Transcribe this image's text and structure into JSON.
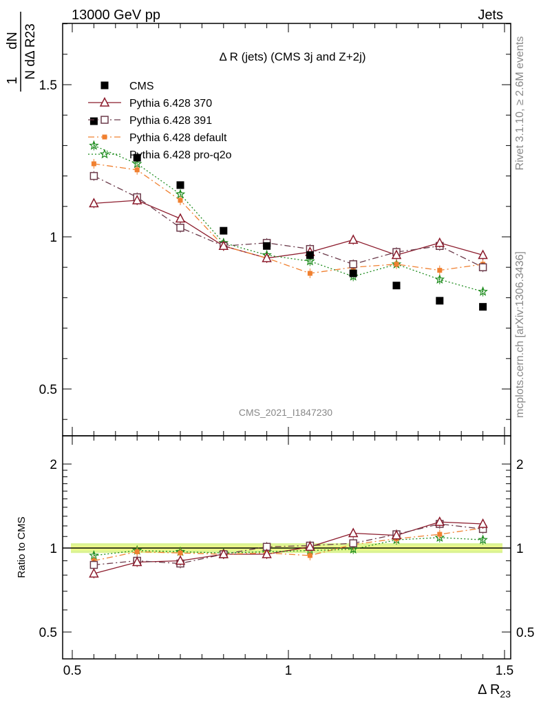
{
  "header": {
    "left": "13000 GeV pp",
    "right": "Jets"
  },
  "side_labels": {
    "rivet": "Rivet 3.1.10, ≥ 2.6M events",
    "mcplots": "mcplots.cern.ch [arXiv:1306.3436]"
  },
  "chart_data": [
    {
      "type": "line",
      "title": "Δ R (jets) (CMS 3j and Z+2j)",
      "watermark": "CMS_2021_I1847230",
      "ylabel_top": "1",
      "ylabel_frac": "dN",
      "ylabel_denom": "N dΔ R23",
      "xlim": [
        0.5,
        1.5
      ],
      "ylim": [
        0.2,
        2.95
      ],
      "yticks": [
        "0.5",
        "1",
        "1.5",
        "2",
        "2.5"
      ],
      "legend_position": "top-left",
      "x": [
        0.55,
        0.65,
        0.75,
        0.85,
        0.95,
        1.05,
        1.15,
        1.25,
        1.35,
        1.45
      ],
      "series": [
        {
          "name": "CMS",
          "color": "#000000",
          "marker": "square-filled",
          "line": "none",
          "values": [
            1.38,
            1.26,
            1.17,
            1.02,
            0.97,
            0.94,
            0.88,
            0.84,
            0.79,
            0.77
          ]
        },
        {
          "name": "Pythia 6.428 370",
          "color": "#8b1a2b",
          "marker": "triangle-open",
          "line": "solid",
          "values": [
            1.11,
            1.12,
            1.06,
            0.97,
            0.93,
            0.95,
            0.99,
            0.94,
            0.98,
            0.94
          ]
        },
        {
          "name": "Pythia 6.428 391",
          "color": "#6b3a4a",
          "marker": "square-open",
          "line": "dashdot",
          "values": [
            1.2,
            1.13,
            1.03,
            0.97,
            0.98,
            0.96,
            0.91,
            0.95,
            0.97,
            0.9
          ]
        },
        {
          "name": "Pythia 6.428 default",
          "color": "#f08030",
          "marker": "square-small",
          "line": "dashdot",
          "values": [
            1.24,
            1.22,
            1.12,
            0.97,
            0.93,
            0.88,
            0.9,
            0.91,
            0.89,
            0.91
          ]
        },
        {
          "name": "Pythia 6.428 pro-q2o",
          "color": "#1a8a1a",
          "marker": "star-open",
          "line": "dotted",
          "values": [
            1.3,
            1.24,
            1.14,
            0.98,
            0.94,
            0.92,
            0.87,
            0.91,
            0.86,
            0.82
          ]
        }
      ]
    },
    {
      "type": "line",
      "ylabel": "Ratio to CMS",
      "xlabel": "Δ R23",
      "xlim": [
        0.5,
        1.5
      ],
      "ylim": [
        0.42,
        2.3
      ],
      "yticks": [
        "0.5",
        "1",
        "2"
      ],
      "xticks": [
        "0.5",
        "1",
        "1.5"
      ],
      "reference_band": {
        "color": "#ccee66",
        "inner": "#eeff88",
        "values": [
          0.96,
          1.04
        ]
      },
      "x": [
        0.55,
        0.65,
        0.75,
        0.85,
        0.95,
        1.05,
        1.15,
        1.25,
        1.35,
        1.45
      ],
      "series": [
        {
          "name": "Pythia 6.428 370",
          "values": [
            0.81,
            0.89,
            0.9,
            0.95,
            0.95,
            1.01,
            1.13,
            1.11,
            1.24,
            1.22
          ]
        },
        {
          "name": "Pythia 6.428 391",
          "values": [
            0.87,
            0.9,
            0.88,
            0.95,
            1.01,
            1.02,
            1.04,
            1.12,
            1.22,
            1.17
          ]
        },
        {
          "name": "Pythia 6.428 default",
          "values": [
            0.9,
            0.97,
            0.96,
            0.95,
            0.96,
            0.94,
            1.03,
            1.08,
            1.12,
            1.18
          ]
        },
        {
          "name": "Pythia 6.428 pro-q2o",
          "values": [
            0.94,
            0.98,
            0.97,
            0.96,
            0.97,
            0.98,
            0.99,
            1.07,
            1.09,
            1.07
          ]
        }
      ]
    }
  ]
}
